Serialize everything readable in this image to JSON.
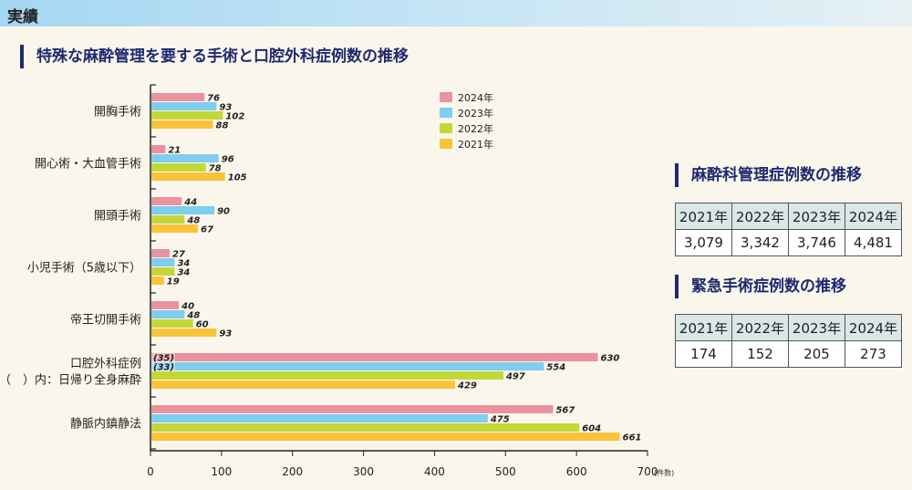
{
  "header": {
    "title": "実績"
  },
  "chart_data": {
    "type": "bar",
    "orientation": "horizontal",
    "title": "特殊な麻酔管理を要する手術と口腔外科症例数の推移",
    "categories": [
      "開胸手術",
      "開心術・大血管手術",
      "開頭手術",
      "小児手術（5歳以下）",
      "帝王切開手術",
      "口腔外科症例",
      "静脈内鎮静法"
    ],
    "category_sublabels": {
      "口腔外科症例": "（　）内：日帰り全身麻酔"
    },
    "series": [
      {
        "name": "2024年",
        "color": "#e8939f",
        "values": [
          76,
          21,
          44,
          27,
          40,
          630,
          567
        ]
      },
      {
        "name": "2023年",
        "color": "#7fcdef",
        "values": [
          93,
          96,
          90,
          34,
          48,
          554,
          475
        ]
      },
      {
        "name": "2022年",
        "color": "#c4d739",
        "values": [
          102,
          78,
          48,
          34,
          60,
          497,
          604
        ]
      },
      {
        "name": "2021年",
        "color": "#f9c33a",
        "values": [
          88,
          105,
          67,
          19,
          93,
          429,
          661
        ]
      }
    ],
    "inner_labels": {
      "口腔外科症例": {
        "2024年": "(35)",
        "2023年": "(33)"
      }
    },
    "xlim": [
      0,
      700
    ],
    "xticks": [
      0,
      100,
      200,
      300,
      400,
      500,
      600,
      700
    ],
    "xunit": "(件数)",
    "legend": "top-center"
  },
  "tables": [
    {
      "title": "麻酔科管理症例数の推移",
      "headers": [
        "2021年",
        "2022年",
        "2023年",
        "2024年"
      ],
      "values": [
        "3,079",
        "3,342",
        "3,746",
        "4,481"
      ]
    },
    {
      "title": "緊急手術症例数の推移",
      "headers": [
        "2021年",
        "2022年",
        "2023年",
        "2024年"
      ],
      "values": [
        "174",
        "152",
        "205",
        "273"
      ]
    }
  ]
}
